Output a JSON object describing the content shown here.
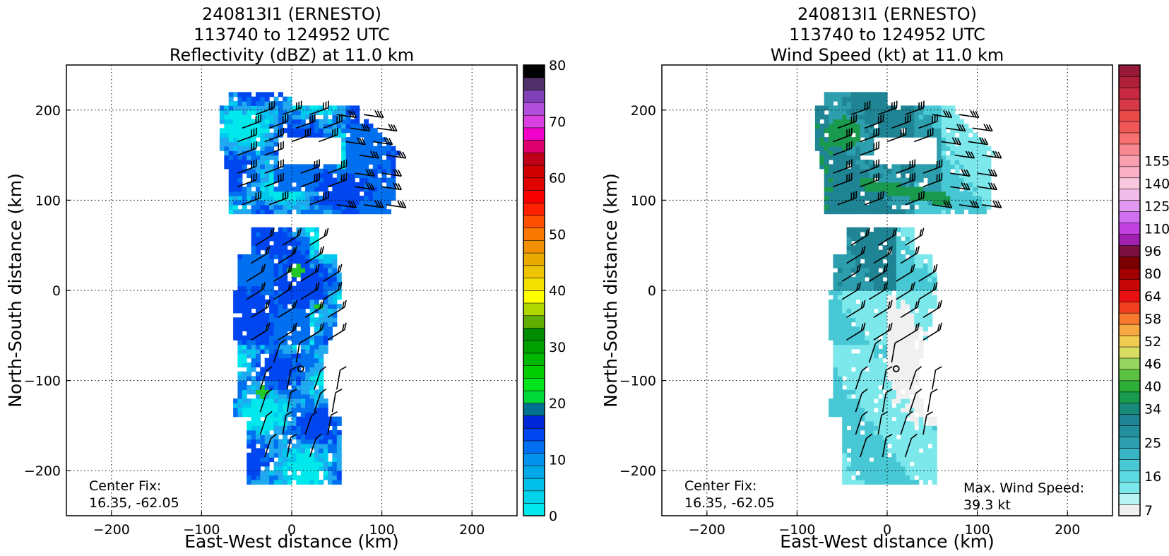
{
  "chart_data": [
    {
      "type": "heatmap",
      "title_lines": [
        "240813I1 (ERNESTO)",
        "113740 to 124952 UTC",
        "Reflectivity (dBZ) at 11.0 km"
      ],
      "xlabel": "East-West distance (km)",
      "ylabel": "North-South distance (km)",
      "xlim": [
        -250,
        250
      ],
      "ylim": [
        -250,
        250
      ],
      "x_ticks": [
        -200,
        -100,
        0,
        100,
        200
      ],
      "y_ticks": [
        -200,
        -100,
        0,
        100,
        200
      ],
      "x_tick_labels": [
        "−200",
        "−100",
        "0",
        "100",
        "200"
      ],
      "y_tick_labels": [
        "−200",
        "−100",
        "0",
        "100",
        "200"
      ],
      "grid": true,
      "center_fix_label": "Center Fix:",
      "center_fix_value": "16.35, -62.05",
      "center_point": [
        10,
        -87
      ],
      "colorbar": {
        "min": 0,
        "max": 80,
        "ticks": [
          0,
          10,
          20,
          30,
          40,
          50,
          60,
          70,
          80
        ],
        "tick_labels": [
          "0",
          "10",
          "20",
          "30",
          "40",
          "50",
          "60",
          "70",
          "80"
        ],
        "colors": [
          "#00e8ec",
          "#00d4ea",
          "#00bfe8",
          "#00a8e8",
          "#0092ec",
          "#0070f0",
          "#0046f0",
          "#0028d8",
          "#007090",
          "#00d838",
          "#00e41c",
          "#00cc00",
          "#00b800",
          "#00a000",
          "#008c00",
          "#62ae00",
          "#b0d800",
          "#ffff00",
          "#f2e000",
          "#eec300",
          "#eaaa00",
          "#f09000",
          "#f87800",
          "#ff5000",
          "#ff2000",
          "#f80000",
          "#e00000",
          "#d00000",
          "#c00018",
          "#de006c",
          "#f000c8",
          "#d840e0",
          "#b050dc",
          "#8040b8",
          "#50306a",
          "#000000"
        ]
      },
      "field_colors": [
        "#00e8ec",
        "#00c8ee",
        "#20a8f0",
        "#0070f0",
        "#0046f0",
        "#22c828"
      ]
    },
    {
      "type": "heatmap",
      "title_lines": [
        "240813I1 (ERNESTO)",
        "113740 to 124952 UTC",
        "Wind Speed (kt) at 11.0 km"
      ],
      "xlabel": "East-West distance (km)",
      "ylabel": "North-South distance (km)",
      "xlim": [
        -250,
        250
      ],
      "ylim": [
        -250,
        250
      ],
      "x_ticks": [
        -200,
        -100,
        0,
        100,
        200
      ],
      "y_ticks": [
        -200,
        -100,
        0,
        100,
        200
      ],
      "x_tick_labels": [
        "−200",
        "−100",
        "0",
        "100",
        "200"
      ],
      "y_tick_labels": [
        "−200",
        "−100",
        "0",
        "100",
        "200"
      ],
      "grid": true,
      "center_fix_label": "Center Fix:",
      "center_fix_value": "16.35, -62.05",
      "center_point": [
        10,
        -87
      ],
      "max_wind_label": "Max. Wind Speed:",
      "max_wind_value": "39.3 kt",
      "colorbar": {
        "tick_labels": [
          "7",
          "16",
          "25",
          "34",
          "40",
          "46",
          "52",
          "58",
          "64",
          "80",
          "96",
          "110",
          "125",
          "140",
          "155"
        ],
        "tick_band_index": [
          0,
          3,
          6,
          9,
          11,
          13,
          15,
          17,
          19,
          21,
          23,
          25,
          27,
          29,
          31
        ],
        "colors": [
          "#f0f0f0",
          "#b8f4f4",
          "#7ce8ec",
          "#5cd8e0",
          "#4ac8d4",
          "#38b4c4",
          "#2c9eae",
          "#23909e",
          "#1f8494",
          "#188a7a",
          "#1a9a4c",
          "#2cae38",
          "#5cc040",
          "#98d460",
          "#d8dc60",
          "#f2cc50",
          "#f8a840",
          "#f87830",
          "#f04020",
          "#e81010",
          "#c80808",
          "#a00000",
          "#7a0000",
          "#7a1040",
          "#a020b0",
          "#c040e0",
          "#d070f0",
          "#e098f0",
          "#f0bce8",
          "#f8c8e0",
          "#fcb0c8",
          "#f8a0b0",
          "#f88890",
          "#f87070",
          "#f05858",
          "#e84848",
          "#d83848",
          "#c82840",
          "#b02038",
          "#981838"
        ]
      },
      "field_colors": [
        "#f0f0f0",
        "#7ce8ec",
        "#48c8d4",
        "#2c9eae",
        "#1f8494",
        "#1a9a4c"
      ]
    }
  ]
}
